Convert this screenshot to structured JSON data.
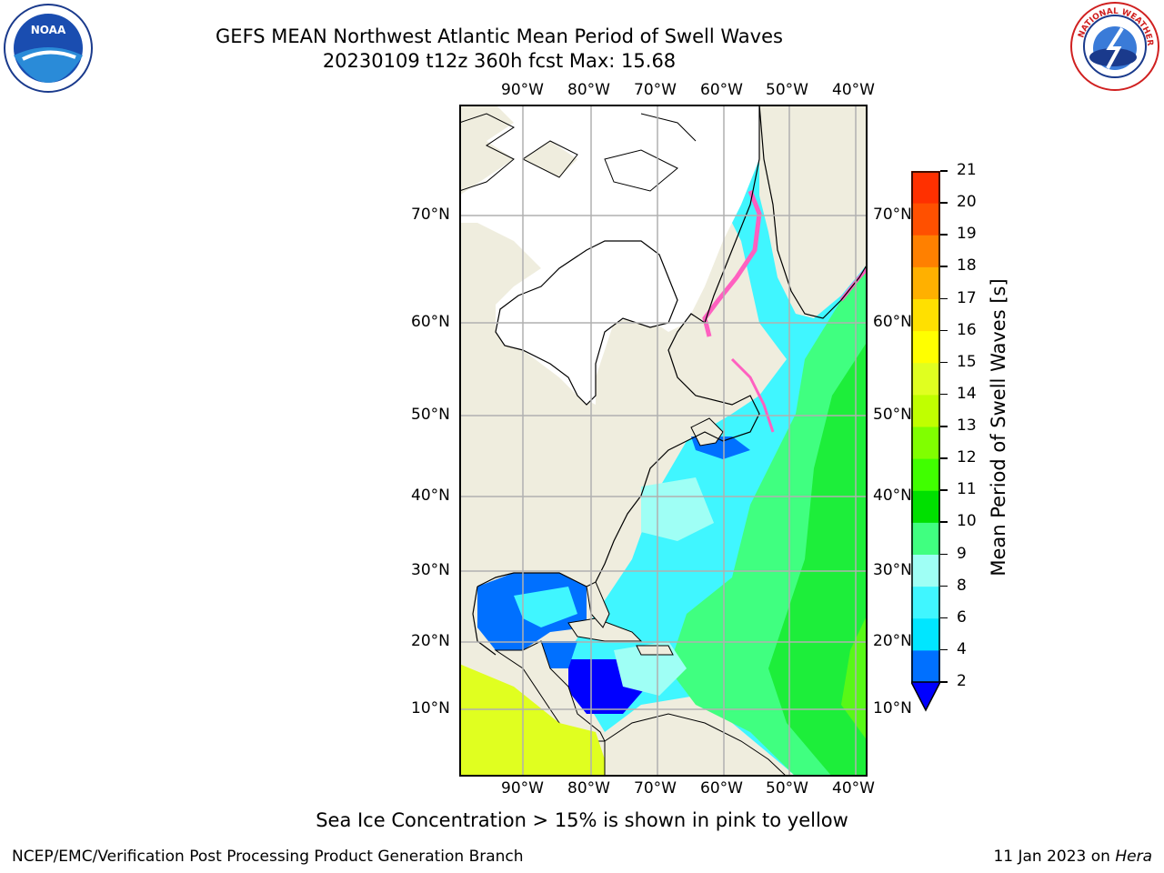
{
  "title": {
    "line1": "GEFS MEAN Northwest Atlantic Mean Period of Swell Waves",
    "line2": "20230109 t12z 360h fcst   Max: 15.68"
  },
  "map": {
    "lon_labels": [
      "90°W",
      "80°W",
      "70°W",
      "60°W",
      "50°W",
      "40°W"
    ],
    "lat_labels": [
      "70°N",
      "60°N",
      "50°N",
      "40°N",
      "30°N",
      "20°N",
      "10°N"
    ],
    "colors": {
      "land": "#efedde",
      "ice_land": "#ffffff",
      "grid": "#b0b0b0",
      "coast": "#000000"
    }
  },
  "colorbar": {
    "label": "Mean Period of Swell Waves [s]",
    "ticks": [
      "2",
      "4",
      "6",
      "8",
      "9",
      "10",
      "11",
      "12",
      "13",
      "14",
      "15",
      "16",
      "17",
      "18",
      "19",
      "20",
      "21"
    ],
    "colors": [
      "#0070ff",
      "#00e6ff",
      "#40f6ff",
      "#9ffff5",
      "#40ff80",
      "#00e000",
      "#40ff00",
      "#80ff00",
      "#c0ff00",
      "#e0ff20",
      "#ffff00",
      "#ffe000",
      "#ffb000",
      "#ff8000",
      "#ff5000",
      "#ff3000",
      "#ff0000"
    ],
    "under_color": "#0000ff"
  },
  "note": "Sea Ice Concentration > 15% is shown in pink to yellow",
  "footer": {
    "left": "NCEP/EMC/Verification Post Processing Product Generation Branch",
    "right_date": "11 Jan 2023 on ",
    "right_host": "Hera"
  },
  "logos": {
    "noaa": "NOAA",
    "nws": "NATIONAL WEATHER SERVICE"
  }
}
